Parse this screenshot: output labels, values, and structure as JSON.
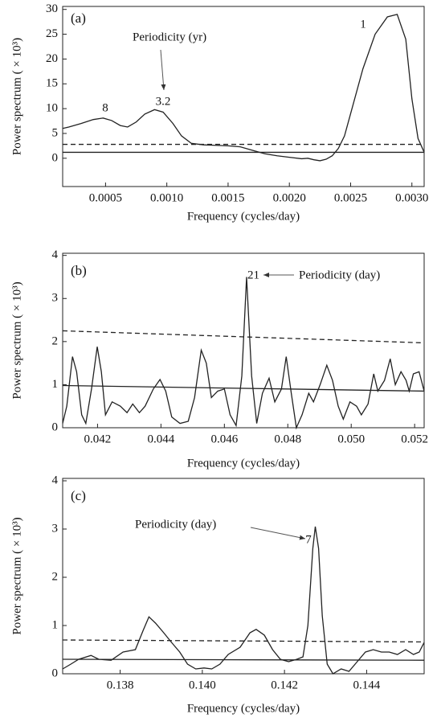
{
  "chart_data": [
    {
      "type": "line",
      "panel_label": "(a)",
      "x_label": "Frequency (cycles/day)",
      "y_label": "Power spectrum ( × 10³)",
      "annotations": [
        "Periodicity (yr)",
        "8",
        "3.2",
        "1"
      ],
      "xlim": [
        0.00015,
        0.0031
      ],
      "ylim": [
        -5.7,
        30.6
      ],
      "xticks": [
        0.0005,
        {
          "value": 0.001,
          "label": "0.0010"
        },
        0.0015,
        {
          "value": 0.002,
          "label": "0.0020"
        },
        0.0025,
        {
          "value": 0.003,
          "label": "0.0030"
        }
      ],
      "yticks": [
        0,
        5,
        10,
        15,
        20,
        25,
        30
      ],
      "series": [
        {
          "color": "#222222",
          "dashed": false,
          "x": [
            0.00015,
            0.0002,
            0.0003,
            0.0004,
            0.00048,
            0.00055,
            0.00062,
            0.00068,
            0.00075,
            0.00082,
            0.0009,
            0.00097,
            0.00105,
            0.00112,
            0.0012,
            0.0013,
            0.0014,
            0.0015,
            0.0016,
            0.0017,
            0.0018,
            0.0019,
            0.002,
            0.0021,
            0.00215,
            0.0022,
            0.00225,
            0.0023,
            0.00235,
            0.0024,
            0.00245,
            0.0025,
            0.0026,
            0.0027,
            0.0028,
            0.00288,
            0.00295,
            0.003,
            0.00305,
            0.0031
          ],
          "values": [
            6,
            6.3,
            7,
            7.8,
            8.1,
            7.6,
            6.6,
            6.3,
            7.3,
            8.9,
            9.8,
            9.3,
            7,
            4.5,
            3,
            2.7,
            2.6,
            2.5,
            2.3,
            1.6,
            0.9,
            0.5,
            0.2,
            -0.1,
            0,
            -0.3,
            -0.5,
            -0.2,
            0.5,
            2,
            4.5,
            9,
            18,
            25,
            28.5,
            29,
            24,
            12,
            4,
            1.2
          ]
        },
        {
          "color": "#222222",
          "dashed": true,
          "x": [
            0.00015,
            0.0031
          ],
          "values": [
            2.8,
            2.8
          ]
        },
        {
          "color": "#222222",
          "dashed": false,
          "x": [
            0.00015,
            0.0031
          ],
          "values": [
            1.2,
            1.2
          ]
        }
      ]
    },
    {
      "type": "line",
      "panel_label": "(b)",
      "x_label": "Frequency (cycles/day)",
      "y_label": "Power spectrum ( × 10³)",
      "annotations": [
        "21",
        "Periodicity (day)"
      ],
      "xlim": [
        0.0409,
        0.0523
      ],
      "ylim": [
        0,
        4.05
      ],
      "xticks": [
        0.042,
        0.044,
        0.046,
        0.048,
        {
          "value": 0.05,
          "label": "0.050"
        },
        0.052
      ],
      "yticks": [
        0,
        1,
        2,
        3,
        4
      ],
      "series": [
        {
          "color": "#222222",
          "dashed": false,
          "x": [
            0.0409,
            0.04103,
            0.04121,
            0.04134,
            0.0415,
            0.04163,
            0.04181,
            0.04199,
            0.04212,
            0.04225,
            0.04246,
            0.04272,
            0.04293,
            0.04311,
            0.04332,
            0.0435,
            0.04376,
            0.04397,
            0.04415,
            0.04434,
            0.0446,
            0.04486,
            0.04506,
            0.04527,
            0.04543,
            0.04559,
            0.04579,
            0.046,
            0.04618,
            0.04637,
            0.04655,
            0.0467,
            0.04686,
            0.04702,
            0.0472,
            0.04741,
            0.04759,
            0.0478,
            0.04795,
            0.04811,
            0.04827,
            0.04845,
            0.04866,
            0.04881,
            0.04902,
            0.04923,
            0.04941,
            0.04959,
            0.04975,
            0.04996,
            0.05017,
            0.05032,
            0.05053,
            0.05071,
            0.05084,
            0.05105,
            0.05123,
            0.05139,
            0.05157,
            0.05173,
            0.05183,
            0.05196,
            0.05214,
            0.0523
          ],
          "values": [
            0.1,
            0.5,
            1.65,
            1.3,
            0.3,
            0.1,
            0.9,
            1.88,
            1.3,
            0.3,
            0.6,
            0.5,
            0.35,
            0.55,
            0.35,
            0.5,
            0.9,
            1.12,
            0.85,
            0.25,
            0.1,
            0.15,
            0.7,
            1.8,
            1.5,
            0.7,
            0.85,
            0.9,
            0.3,
            0.05,
            1.2,
            3.5,
            1.2,
            0.1,
            0.8,
            1.15,
            0.6,
            0.9,
            1.65,
            0.8,
            0,
            0.3,
            0.8,
            0.6,
            1,
            1.45,
            1.1,
            0.5,
            0.2,
            0.6,
            0.5,
            0.3,
            0.55,
            1.25,
            0.85,
            1.1,
            1.6,
            1,
            1.3,
            1.1,
            0.85,
            1.25,
            1.3,
            0.85
          ]
        },
        {
          "color": "#222222",
          "dashed": true,
          "x": [
            0.0409,
            0.0523
          ],
          "values": [
            2.25,
            1.97
          ]
        },
        {
          "color": "#222222",
          "dashed": false,
          "x": [
            0.0409,
            0.0523
          ],
          "values": [
            0.98,
            0.85
          ]
        }
      ]
    },
    {
      "type": "line",
      "panel_label": "(c)",
      "x_label": "Frequency (cycles/day)",
      "y_label": "Power spectrum ( × 10³)",
      "annotations": [
        "Periodicity (day)",
        "7"
      ],
      "xlim": [
        0.1366,
        0.1454
      ],
      "ylim": [
        0,
        4.05
      ],
      "xticks": [
        0.138,
        {
          "value": 0.14,
          "label": "0.140"
        },
        0.142,
        0.144
      ],
      "yticks": [
        0,
        1,
        2,
        3,
        4
      ],
      "series": [
        {
          "color": "#222222",
          "dashed": false,
          "x": [
            0.1366,
            0.1368,
            0.13699,
            0.13729,
            0.13748,
            0.13778,
            0.13807,
            0.13837,
            0.13856,
            0.1387,
            0.13886,
            0.13906,
            0.13925,
            0.13945,
            0.13964,
            0.13984,
            0.14004,
            0.14023,
            0.14043,
            0.14063,
            0.14092,
            0.14116,
            0.14131,
            0.14151,
            0.14171,
            0.1419,
            0.1421,
            0.1423,
            0.14245,
            0.14257,
            0.14269,
            0.14275,
            0.14283,
            0.14292,
            0.14304,
            0.14318,
            0.14338,
            0.14357,
            0.14377,
            0.14397,
            0.14416,
            0.14436,
            0.14455,
            0.14475,
            0.14495,
            0.14514,
            0.14528,
            0.1454
          ],
          "values": [
            0.1,
            0.2,
            0.3,
            0.38,
            0.3,
            0.28,
            0.45,
            0.5,
            0.9,
            1.18,
            1.05,
            0.85,
            0.65,
            0.45,
            0.2,
            0.1,
            0.12,
            0.1,
            0.2,
            0.4,
            0.55,
            0.85,
            0.92,
            0.8,
            0.5,
            0.3,
            0.25,
            0.3,
            0.35,
            1,
            2.6,
            3.05,
            2.6,
            1.2,
            0.2,
            0,
            0.1,
            0.05,
            0.25,
            0.45,
            0.5,
            0.45,
            0.45,
            0.4,
            0.5,
            0.4,
            0.45,
            0.65
          ]
        },
        {
          "color": "#222222",
          "dashed": true,
          "x": [
            0.1366,
            0.1454
          ],
          "values": [
            0.7,
            0.66
          ]
        },
        {
          "color": "#222222",
          "dashed": false,
          "x": [
            0.1366,
            0.1454
          ],
          "values": [
            0.3,
            0.28
          ]
        }
      ]
    }
  ]
}
